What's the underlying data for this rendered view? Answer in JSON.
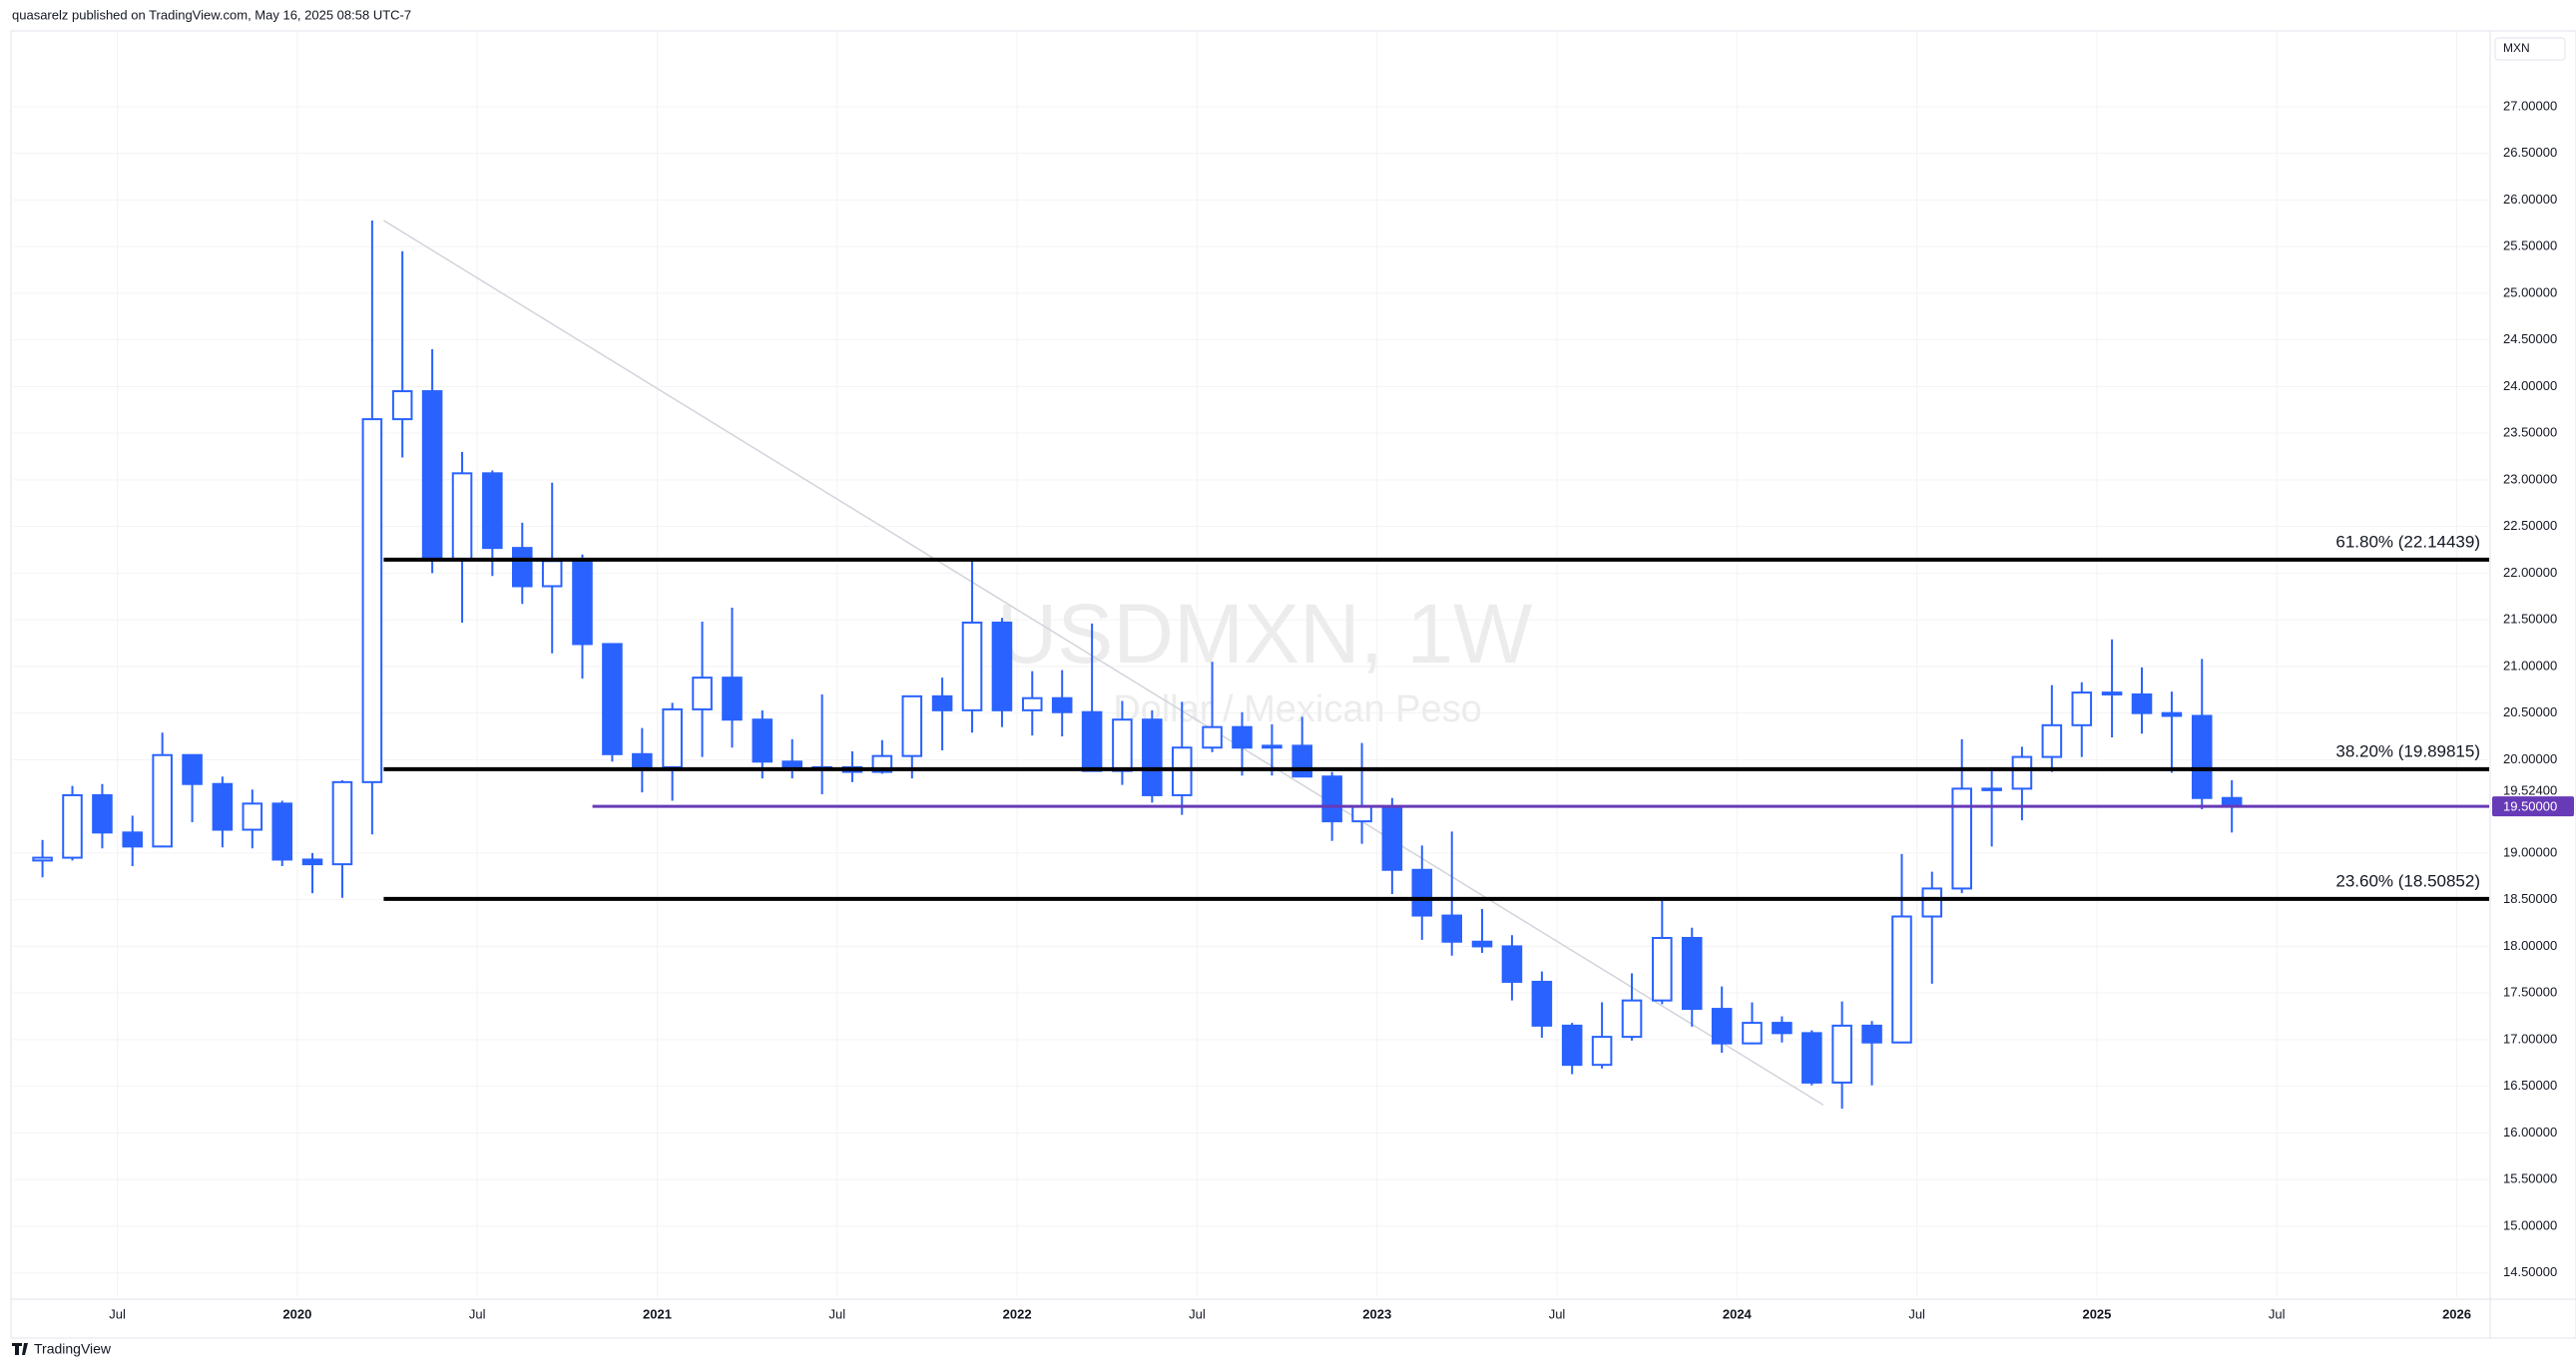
{
  "header": {
    "publisher": "quasarelz published on TradingView.com, May 16, 2025 08:58 UTC-7",
    "currency": "MXN",
    "logo": "TradingView"
  },
  "chart_data": {
    "type": "candlestick",
    "watermark": "USDMXN, 1W",
    "watermark_subtitle": "Dollar / Mexican Peso",
    "up_color": "#ffffff",
    "down_color": "#2962ff",
    "border_color": "#2962ff",
    "grid": true,
    "grid_color": "#f3f3f3",
    "x": [
      2019.292,
      2019.375,
      2019.458,
      2019.542,
      2019.625,
      2019.708,
      2019.792,
      2019.875,
      2019.958,
      2020.042,
      2020.125,
      2020.208,
      2020.292,
      2020.375,
      2020.458,
      2020.542,
      2020.625,
      2020.708,
      2020.792,
      2020.875,
      2020.958,
      2021.042,
      2021.125,
      2021.208,
      2021.292,
      2021.375,
      2021.458,
      2021.542,
      2021.625,
      2021.708,
      2021.792,
      2021.875,
      2021.958,
      2022.042,
      2022.125,
      2022.208,
      2022.292,
      2022.375,
      2022.458,
      2022.542,
      2022.625,
      2022.708,
      2022.792,
      2022.875,
      2022.958,
      2023.042,
      2023.125,
      2023.208,
      2023.292,
      2023.375,
      2023.458,
      2023.542,
      2023.625,
      2023.708,
      2023.792,
      2023.875,
      2023.958,
      2024.042,
      2024.125,
      2024.208,
      2024.292,
      2024.375,
      2024.458,
      2024.542,
      2024.625,
      2024.708,
      2024.792,
      2024.875,
      2024.958,
      2025.042,
      2025.125,
      2025.208,
      2025.292,
      2025.375
    ],
    "open": [
      18.92,
      18.95,
      19.62,
      19.22,
      19.07,
      20.05,
      19.74,
      19.25,
      19.53,
      18.93,
      18.88,
      19.76,
      23.65,
      23.95,
      22.15,
      23.07,
      22.27,
      21.86,
      22.13,
      21.24,
      20.06,
      19.92,
      20.54,
      20.88,
      20.43,
      19.98,
      19.9,
      19.92,
      19.87,
      20.04,
      20.68,
      20.53,
      21.47,
      20.53,
      20.66,
      20.51,
      19.88,
      20.43,
      19.62,
      20.13,
      20.35,
      20.13,
      20.15,
      19.82,
      19.34,
      19.5,
      18.82,
      18.33,
      18.05,
      18.0,
      17.62,
      17.15,
      16.73,
      17.03,
      17.42,
      18.09,
      17.33,
      16.96,
      17.18,
      17.07,
      16.54,
      17.15,
      16.97,
      18.32,
      18.62,
      19.69,
      19.69,
      20.03,
      20.37,
      20.72,
      20.7,
      20.5,
      20.47,
      19.59
    ],
    "high": [
      19.14,
      19.72,
      19.74,
      19.4,
      20.29,
      20.05,
      19.82,
      19.68,
      19.56,
      19.0,
      19.78,
      25.78,
      25.45,
      24.4,
      23.3,
      23.1,
      22.54,
      22.97,
      22.2,
      21.25,
      20.34,
      20.61,
      21.48,
      21.63,
      20.53,
      20.22,
      20.7,
      20.09,
      20.21,
      20.68,
      20.88,
      22.16,
      21.52,
      20.95,
      20.96,
      21.46,
      20.63,
      20.53,
      20.62,
      21.05,
      20.51,
      20.38,
      20.46,
      19.87,
      20.18,
      19.59,
      19.08,
      19.23,
      18.4,
      18.12,
      17.73,
      17.18,
      17.4,
      17.71,
      18.49,
      18.2,
      17.57,
      17.4,
      17.25,
      17.1,
      17.41,
      17.2,
      18.99,
      18.8,
      20.22,
      19.92,
      20.14,
      20.8,
      20.83,
      21.29,
      20.99,
      20.73,
      21.08,
      19.78
    ],
    "low": [
      18.74,
      18.92,
      19.05,
      18.86,
      19.06,
      19.33,
      19.06,
      19.05,
      18.86,
      18.57,
      18.52,
      19.2,
      23.24,
      22.0,
      21.47,
      21.97,
      21.67,
      21.14,
      20.87,
      19.98,
      19.65,
      19.56,
      20.03,
      20.13,
      19.8,
      19.8,
      19.63,
      19.76,
      19.85,
      19.8,
      20.1,
      20.29,
      20.35,
      20.26,
      20.25,
      19.88,
      19.73,
      19.54,
      19.41,
      20.08,
      19.83,
      19.83,
      19.82,
      19.13,
      19.1,
      18.56,
      18.07,
      17.9,
      17.93,
      17.42,
      17.02,
      16.63,
      16.69,
      16.99,
      17.38,
      17.14,
      16.86,
      16.95,
      16.97,
      16.51,
      16.26,
      16.51,
      16.96,
      17.6,
      18.57,
      19.07,
      19.35,
      19.87,
      20.03,
      20.24,
      20.28,
      19.86,
      19.47,
      19.22
    ],
    "close": [
      18.95,
      19.62,
      19.22,
      19.07,
      20.05,
      19.74,
      19.25,
      19.53,
      18.93,
      18.88,
      19.76,
      23.65,
      23.95,
      22.15,
      23.07,
      22.27,
      21.86,
      22.13,
      21.24,
      20.06,
      19.92,
      20.54,
      20.88,
      20.43,
      19.98,
      19.9,
      19.92,
      19.87,
      20.04,
      20.68,
      20.53,
      21.47,
      20.53,
      20.66,
      20.51,
      19.88,
      20.43,
      19.62,
      20.13,
      20.35,
      20.13,
      20.15,
      19.82,
      19.34,
      19.5,
      18.82,
      18.33,
      18.05,
      18.0,
      17.62,
      17.15,
      16.73,
      17.03,
      17.42,
      18.09,
      17.33,
      16.96,
      17.18,
      17.07,
      16.54,
      17.15,
      16.97,
      18.32,
      18.62,
      19.69,
      19.69,
      20.03,
      20.37,
      20.72,
      20.7,
      20.5,
      20.47,
      19.59,
      19.52
    ],
    "xlim": [
      2019.21,
      2026.09
    ],
    "xticks": [
      {
        "value": 2019.5,
        "label": "Jul"
      },
      {
        "value": 2020,
        "label": "2020"
      },
      {
        "value": 2020.5,
        "label": "Jul"
      },
      {
        "value": 2021,
        "label": "2021"
      },
      {
        "value": 2021.5,
        "label": "Jul"
      },
      {
        "value": 2022,
        "label": "2022"
      },
      {
        "value": 2022.5,
        "label": "Jul"
      },
      {
        "value": 2023,
        "label": "2023"
      },
      {
        "value": 2023.5,
        "label": "Jul"
      },
      {
        "value": 2024,
        "label": "2024"
      },
      {
        "value": 2024.5,
        "label": "Jul"
      },
      {
        "value": 2025,
        "label": "2025"
      },
      {
        "value": 2025.5,
        "label": "Jul"
      },
      {
        "value": 2026,
        "label": "2026"
      }
    ],
    "ylim": [
      14.24,
      27.79
    ],
    "yticks": [
      {
        "value": 14.5,
        "label": "14.50000"
      },
      {
        "value": 15,
        "label": "15.00000"
      },
      {
        "value": 15.5,
        "label": "15.50000"
      },
      {
        "value": 16,
        "label": "16.00000"
      },
      {
        "value": 16.5,
        "label": "16.50000"
      },
      {
        "value": 17,
        "label": "17.00000"
      },
      {
        "value": 17.5,
        "label": "17.50000"
      },
      {
        "value": 18,
        "label": "18.00000"
      },
      {
        "value": 18.5,
        "label": "18.50000"
      },
      {
        "value": 19,
        "label": "19.00000"
      },
      {
        "value": 20,
        "label": "20.00000"
      },
      {
        "value": 20.5,
        "label": "20.50000"
      },
      {
        "value": 21,
        "label": "21.00000"
      },
      {
        "value": 21.5,
        "label": "21.50000"
      },
      {
        "value": 22,
        "label": "22.00000"
      },
      {
        "value": 22.5,
        "label": "22.50000"
      },
      {
        "value": 23,
        "label": "23.00000"
      },
      {
        "value": 23.5,
        "label": "23.50000"
      },
      {
        "value": 24,
        "label": "24.00000"
      },
      {
        "value": 24.5,
        "label": "24.50000"
      },
      {
        "value": 25,
        "label": "25.00000"
      },
      {
        "value": 25.5,
        "label": "25.50000"
      },
      {
        "value": 26,
        "label": "26.00000"
      },
      {
        "value": 26.5,
        "label": "26.50000"
      },
      {
        "value": 27,
        "label": "27.00000"
      }
    ],
    "fib_levels": [
      {
        "value": 22.14439,
        "label": "61.80% (22.14439)"
      },
      {
        "value": 19.89815,
        "label": "38.20% (19.89815)"
      },
      {
        "value": 18.50852,
        "label": "23.60% (18.50852)"
      }
    ],
    "fib_start": 2020.24,
    "trendline": {
      "x": [
        2020.24,
        2024.24
      ],
      "y": [
        25.78,
        16.3
      ]
    },
    "last_price": {
      "value": 19.524,
      "label": "19.52400"
    },
    "alert_line": {
      "value": 19.5,
      "label": "19.50000",
      "start": 2020.82,
      "color": "#673ab7"
    }
  }
}
